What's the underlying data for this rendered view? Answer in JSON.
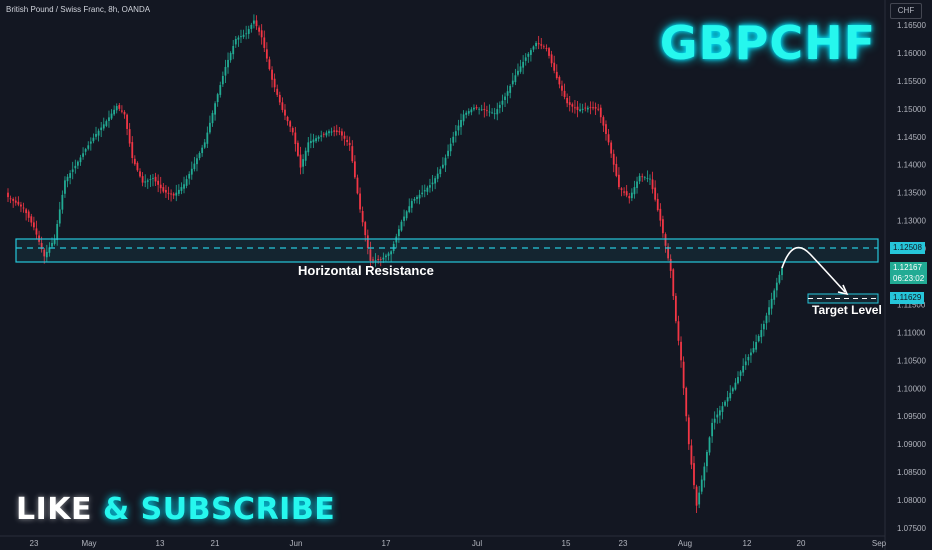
{
  "header": {
    "instrument": "British Pound / Swiss Franc, 8h, OANDA",
    "currency": "CHF"
  },
  "overlay": {
    "title": "GBPCHF",
    "cta_like": "LIKE",
    "cta_amp": "&",
    "cta_subscribe": "SUBSCRIBE",
    "zone_label": "Horizontal Resistance",
    "target_label": "Target Level"
  },
  "colors": {
    "up": "#22ab94",
    "down": "#f23645",
    "zone": "#26c6da",
    "accent": "#26f7ee",
    "background": "#131722"
  },
  "price_tags": {
    "resistance": "1.12508",
    "current_price": "1.12167",
    "countdown": "06:23:02",
    "target": "1.11629"
  },
  "chart_data": {
    "type": "candlestick",
    "title": "",
    "ylabel": "CHF",
    "ylim": [
      1.074,
      1.1665
    ],
    "y_ticks": [
      "1.16500",
      "1.16000",
      "1.15500",
      "1.15000",
      "1.14500",
      "1.14000",
      "1.13500",
      "1.13000",
      "1.12500",
      "1.12000",
      "1.11500",
      "1.11000",
      "1.10500",
      "1.10000",
      "1.09500",
      "1.09000",
      "1.08500",
      "1.08000",
      "1.07500"
    ],
    "x_ticks": [
      "23",
      "May",
      "13",
      "21",
      "Jun",
      "17",
      "Jul",
      "15",
      "23",
      "Aug",
      "12",
      "20",
      "Sep"
    ],
    "close_path": [
      [
        0,
        1.1342
      ],
      [
        6,
        1.1322
      ],
      [
        10,
        1.1288
      ],
      [
        14,
        1.1236
      ],
      [
        18,
        1.1268
      ],
      [
        22,
        1.1372
      ],
      [
        26,
        1.1398
      ],
      [
        30,
        1.1428
      ],
      [
        34,
        1.1455
      ],
      [
        38,
        1.1478
      ],
      [
        42,
        1.1505
      ],
      [
        45,
        1.149
      ],
      [
        48,
        1.1412
      ],
      [
        52,
        1.1368
      ],
      [
        56,
        1.1376
      ],
      [
        60,
        1.1352
      ],
      [
        64,
        1.1345
      ],
      [
        68,
        1.1365
      ],
      [
        72,
        1.1402
      ],
      [
        76,
        1.144
      ],
      [
        80,
        1.151
      ],
      [
        84,
        1.1575
      ],
      [
        88,
        1.1625
      ],
      [
        92,
        1.1635
      ],
      [
        95,
        1.1658
      ],
      [
        98,
        1.1628
      ],
      [
        102,
        1.1552
      ],
      [
        106,
        1.1498
      ],
      [
        110,
        1.1458
      ],
      [
        113,
        1.1395
      ],
      [
        116,
        1.144
      ],
      [
        120,
        1.145
      ],
      [
        124,
        1.146
      ],
      [
        128,
        1.1458
      ],
      [
        132,
        1.1435
      ],
      [
        136,
        1.132
      ],
      [
        140,
        1.1228
      ],
      [
        144,
        1.123
      ],
      [
        148,
        1.1245
      ],
      [
        152,
        1.1298
      ],
      [
        156,
        1.1335
      ],
      [
        160,
        1.135
      ],
      [
        164,
        1.1368
      ],
      [
        168,
        1.14
      ],
      [
        172,
        1.145
      ],
      [
        176,
        1.149
      ],
      [
        180,
        1.1502
      ],
      [
        184,
        1.1498
      ],
      [
        188,
        1.1492
      ],
      [
        192,
        1.1522
      ],
      [
        196,
        1.156
      ],
      [
        200,
        1.1592
      ],
      [
        204,
        1.1618
      ],
      [
        208,
        1.1608
      ],
      [
        212,
        1.1555
      ],
      [
        216,
        1.151
      ],
      [
        220,
        1.1498
      ],
      [
        224,
        1.1502
      ],
      [
        228,
        1.15
      ],
      [
        232,
        1.144
      ],
      [
        236,
        1.136
      ],
      [
        240,
        1.134
      ],
      [
        244,
        1.138
      ],
      [
        248,
        1.1375
      ],
      [
        252,
        1.13
      ],
      [
        256,
        1.121
      ],
      [
        258,
        1.112
      ],
      [
        260,
        1.105
      ],
      [
        263,
        1.09
      ],
      [
        266,
        1.079
      ],
      [
        269,
        1.086
      ],
      [
        272,
        1.0938
      ],
      [
        276,
        1.0968
      ],
      [
        280,
        1.1
      ],
      [
        284,
        1.104
      ],
      [
        288,
        1.1072
      ],
      [
        292,
        1.1115
      ],
      [
        296,
        1.1175
      ],
      [
        299,
        1.1217
      ]
    ]
  }
}
